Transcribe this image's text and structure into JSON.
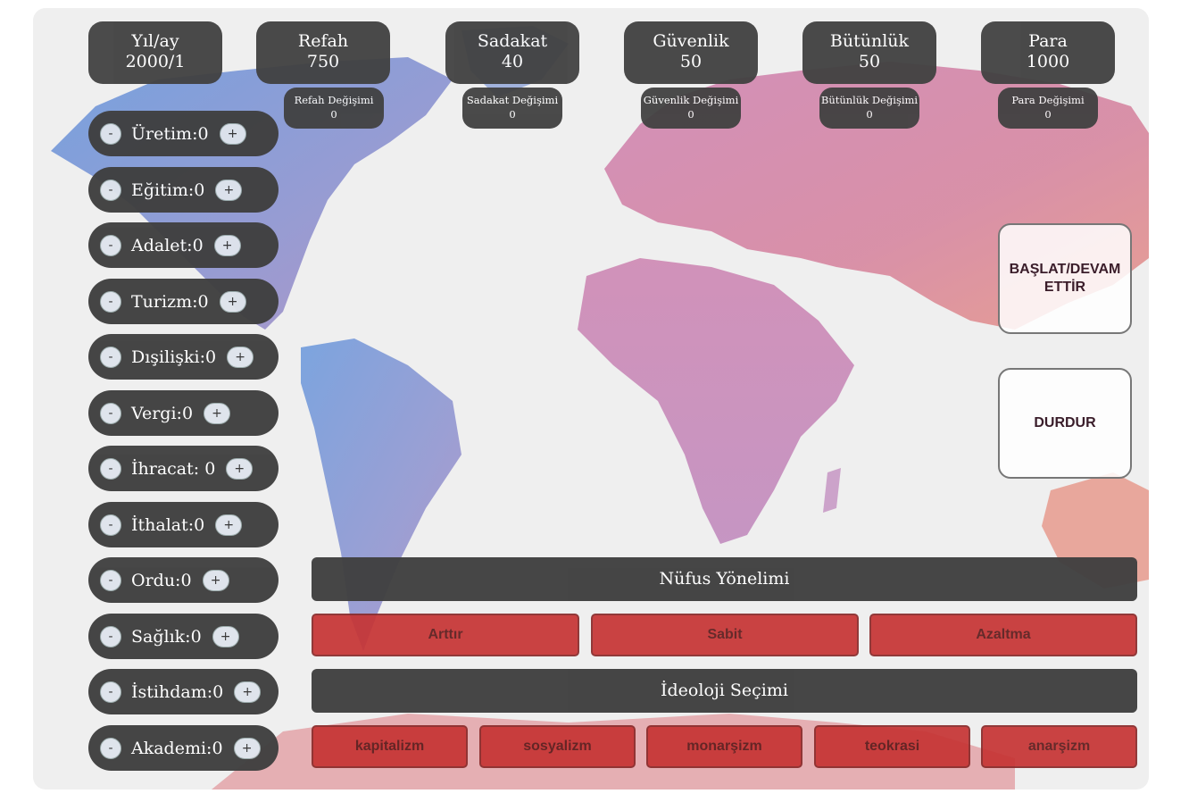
{
  "stats": [
    {
      "label": "Yıl/ay",
      "value": "2000/1"
    },
    {
      "label": "Refah",
      "value": "750"
    },
    {
      "label": "Sadakat",
      "value": "40"
    },
    {
      "label": "Güvenlik",
      "value": "50"
    },
    {
      "label": "Bütünlük",
      "value": "50"
    },
    {
      "label": "Para",
      "value": "1000"
    }
  ],
  "changes": [
    {
      "label": "Refah Değişimi",
      "value": "0"
    },
    {
      "label": "Sadakat Değişimi",
      "value": "0"
    },
    {
      "label": "Güvenlik Değişimi",
      "value": "0"
    },
    {
      "label": "Bütünlük Değişimi",
      "value": "0"
    },
    {
      "label": "Para Değişimi",
      "value": "0"
    }
  ],
  "sectors": [
    {
      "label": "Üretim:0"
    },
    {
      "label": "Eğitim:0"
    },
    {
      "label": "Adalet:0"
    },
    {
      "label": "Turizm:0"
    },
    {
      "label": "Dışilişki:0"
    },
    {
      "label": "Vergi:0"
    },
    {
      "label": "İhracat: 0"
    },
    {
      "label": "İthalat:0"
    },
    {
      "label": "Ordu:0"
    },
    {
      "label": "Sağlık:0"
    },
    {
      "label": "İstihdam:0"
    },
    {
      "label": "Akademi:0"
    }
  ],
  "stepper": {
    "minus": "-",
    "plus": "+"
  },
  "controls": {
    "start": "BAŞLAT/DEVAM ETTİR",
    "stop": "DURDUR"
  },
  "population": {
    "title": "Nüfus Yönelimi",
    "options": [
      "Arttır",
      "Sabit",
      "Azaltma"
    ]
  },
  "ideology": {
    "title": "İdeoloji Seçimi",
    "options": [
      "kapitalizm",
      "sosyalizm",
      "monarşizm",
      "teokrasi",
      "anarşizm"
    ]
  },
  "colors": {
    "panel": "#414141",
    "accent_red": "#c63434",
    "map_blue": "#5b8fd6",
    "map_pink": "#c56a9a"
  }
}
